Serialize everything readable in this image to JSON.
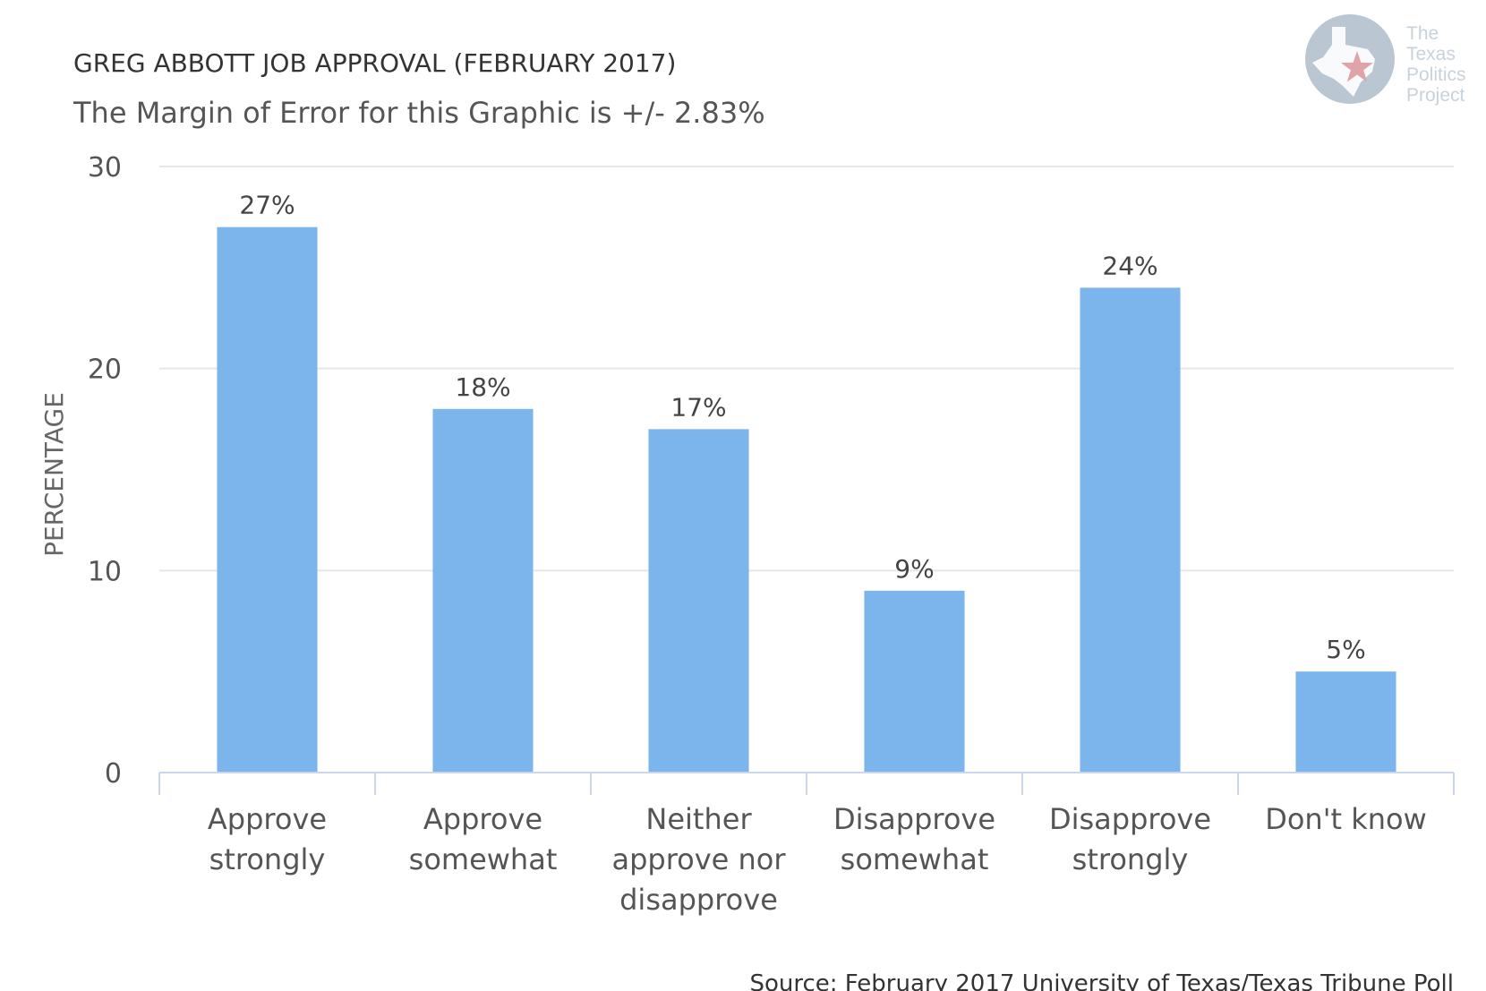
{
  "chart_data": {
    "type": "bar",
    "title": "GREG ABBOTT JOB APPROVAL (FEBRUARY 2017)",
    "subtitle": "The Margin of Error for this Graphic is +/- 2.83%",
    "xlabel": "",
    "ylabel": "PERCENTAGE",
    "ylim": [
      0,
      30
    ],
    "yticks": [
      "0",
      "10",
      "20",
      "30"
    ],
    "grid": true,
    "categories": [
      "Approve strongly",
      "Approve somewhat",
      "Neither approve nor disapprove",
      "Disapprove somewhat",
      "Disapprove strongly",
      "Don't know"
    ],
    "values": [
      27,
      18,
      17,
      9,
      24,
      5
    ],
    "data_labels": [
      "27%",
      "18%",
      "17%",
      "9%",
      "24%",
      "5%"
    ],
    "bar_color": "#7cb5ec",
    "source": "Source: February 2017 University of Texas/Texas Tribune Poll"
  },
  "logo": {
    "lines": [
      "The",
      "Texas",
      "Politics",
      "Project"
    ],
    "circle_color": "#bac7d2",
    "star_color": "#e0a3a8"
  },
  "colors": {
    "text": "#333333",
    "axis_label": "#666666",
    "grid": "#e6e6e6",
    "axis_line": "#ccd6eb"
  }
}
